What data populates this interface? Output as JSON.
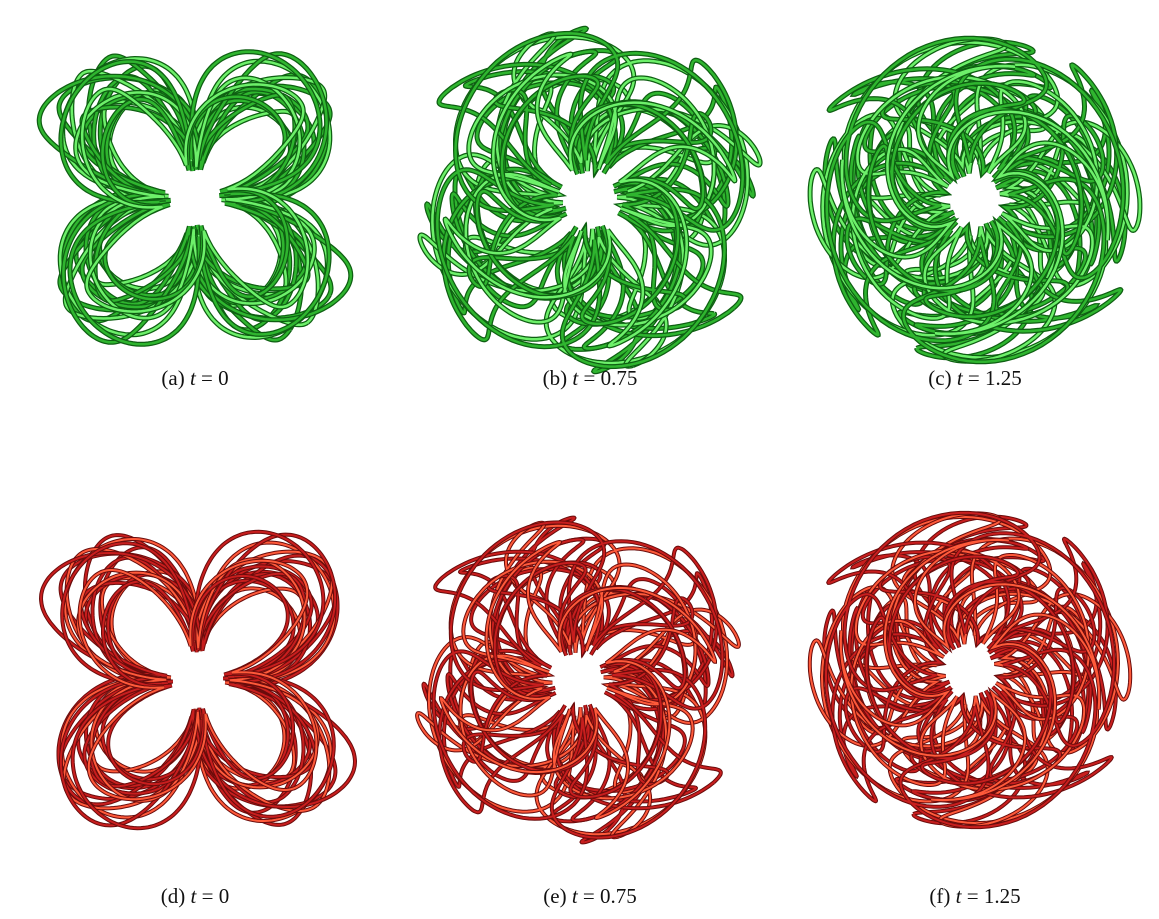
{
  "panels": [
    {
      "label": "(a)",
      "variable": "t",
      "relation": "=",
      "value": 0
    },
    {
      "label": "(b)",
      "variable": "t",
      "relation": "=",
      "value": 0.75
    },
    {
      "label": "(c)",
      "variable": "t",
      "relation": "=",
      "value": 1.25
    },
    {
      "label": "(d)",
      "variable": "t",
      "relation": "=",
      "value": 0
    },
    {
      "label": "(e)",
      "variable": "t",
      "relation": "=",
      "value": 0.75
    },
    {
      "label": "(f)",
      "variable": "t",
      "relation": "=",
      "value": 1.25
    }
  ]
}
